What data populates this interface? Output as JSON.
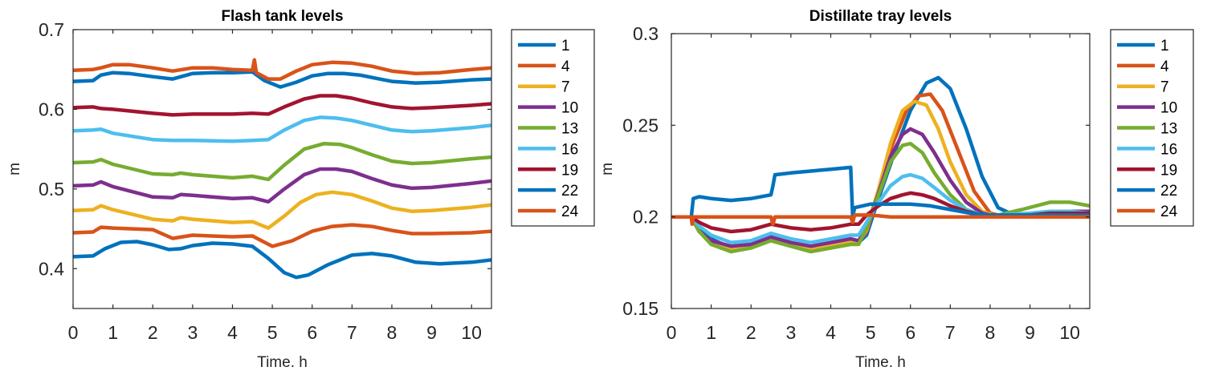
{
  "chart_data": [
    {
      "type": "line",
      "title": "Flash tank levels",
      "xlabel": "Time. h",
      "ylabel": "m",
      "xlim": [
        0,
        10.5
      ],
      "ylim": [
        0.35,
        0.7
      ],
      "xticks": [
        "0",
        "1",
        "2",
        "3",
        "4",
        "5",
        "6",
        "7",
        "8",
        "9",
        "10"
      ],
      "yticks": [
        "0.4",
        "0.5",
        "0.6",
        "0.7"
      ],
      "legend_position": "outside-right",
      "series": [
        {
          "name": "1",
          "color": "#0072BD",
          "x": [
            0,
            0.5,
            0.8,
            1.2,
            1.6,
            2.0,
            2.4,
            2.7,
            3.0,
            3.5,
            4.0,
            4.5,
            4.9,
            5.3,
            5.6,
            5.9,
            6.4,
            7.0,
            7.5,
            8.0,
            8.6,
            9.2,
            10.0,
            10.5
          ],
          "y": [
            0.415,
            0.416,
            0.425,
            0.433,
            0.434,
            0.43,
            0.424,
            0.425,
            0.429,
            0.432,
            0.431,
            0.428,
            0.413,
            0.395,
            0.389,
            0.392,
            0.405,
            0.417,
            0.419,
            0.416,
            0.408,
            0.406,
            0.408,
            0.411
          ]
        },
        {
          "name": "4",
          "color": "#D95319",
          "x": [
            0,
            0.5,
            0.7,
            1.0,
            2.0,
            2.5,
            3.0,
            4.0,
            4.5,
            5.0,
            5.5,
            6.0,
            6.5,
            7.0,
            7.5,
            8.0,
            8.5,
            9.0,
            10.0,
            10.5
          ],
          "y": [
            0.445,
            0.446,
            0.452,
            0.451,
            0.449,
            0.438,
            0.442,
            0.44,
            0.441,
            0.428,
            0.435,
            0.447,
            0.453,
            0.455,
            0.453,
            0.448,
            0.444,
            0.444,
            0.445,
            0.447
          ]
        },
        {
          "name": "7",
          "color": "#EDB120",
          "x": [
            0,
            0.5,
            0.7,
            1.0,
            2.0,
            2.5,
            2.7,
            3.0,
            4.0,
            4.5,
            4.9,
            5.3,
            5.7,
            6.1,
            6.5,
            7.0,
            7.5,
            8.0,
            8.5,
            9.0,
            10.0,
            10.5
          ],
          "y": [
            0.473,
            0.474,
            0.479,
            0.474,
            0.462,
            0.46,
            0.464,
            0.462,
            0.458,
            0.459,
            0.451,
            0.466,
            0.483,
            0.493,
            0.496,
            0.493,
            0.485,
            0.476,
            0.472,
            0.473,
            0.477,
            0.48
          ]
        },
        {
          "name": "10",
          "color": "#7E2F8E",
          "x": [
            0,
            0.5,
            0.7,
            1.0,
            2.0,
            2.5,
            2.7,
            3.0,
            4.0,
            4.5,
            4.9,
            5.3,
            5.8,
            6.2,
            6.6,
            7.0,
            7.5,
            8.0,
            8.5,
            9.0,
            10.0,
            10.5
          ],
          "y": [
            0.504,
            0.505,
            0.509,
            0.503,
            0.49,
            0.489,
            0.493,
            0.492,
            0.488,
            0.489,
            0.484,
            0.5,
            0.518,
            0.525,
            0.525,
            0.522,
            0.513,
            0.505,
            0.501,
            0.502,
            0.507,
            0.51
          ]
        },
        {
          "name": "13",
          "color": "#77AC30",
          "x": [
            0,
            0.5,
            0.7,
            1.0,
            2.0,
            2.5,
            2.7,
            3.0,
            4.0,
            4.5,
            4.9,
            5.3,
            5.8,
            6.3,
            6.7,
            7.0,
            7.5,
            8.0,
            8.5,
            9.0,
            10.0,
            10.5
          ],
          "y": [
            0.533,
            0.534,
            0.537,
            0.531,
            0.519,
            0.518,
            0.52,
            0.518,
            0.514,
            0.516,
            0.512,
            0.53,
            0.55,
            0.557,
            0.556,
            0.552,
            0.543,
            0.535,
            0.532,
            0.533,
            0.538,
            0.54
          ]
        },
        {
          "name": "16",
          "color": "#4DBEEE",
          "x": [
            0,
            0.5,
            0.7,
            1.0,
            2.0,
            2.5,
            3.0,
            4.0,
            4.5,
            4.9,
            5.3,
            5.8,
            6.2,
            6.6,
            7.0,
            7.5,
            8.0,
            8.5,
            9.0,
            10.0,
            10.5
          ],
          "y": [
            0.573,
            0.574,
            0.575,
            0.57,
            0.562,
            0.561,
            0.561,
            0.56,
            0.561,
            0.562,
            0.574,
            0.586,
            0.59,
            0.589,
            0.586,
            0.58,
            0.574,
            0.572,
            0.573,
            0.577,
            0.58
          ]
        },
        {
          "name": "19",
          "color": "#A2142F",
          "x": [
            0,
            0.5,
            0.7,
            1.0,
            2.0,
            2.5,
            3.0,
            4.0,
            4.5,
            4.9,
            5.3,
            5.8,
            6.2,
            6.6,
            7.0,
            7.5,
            8.0,
            8.5,
            9.0,
            10.0,
            10.5
          ],
          "y": [
            0.602,
            0.603,
            0.601,
            0.6,
            0.595,
            0.593,
            0.594,
            0.594,
            0.595,
            0.594,
            0.603,
            0.613,
            0.617,
            0.617,
            0.614,
            0.608,
            0.603,
            0.601,
            0.602,
            0.605,
            0.607
          ]
        },
        {
          "name": "22",
          "color": "#0072BD",
          "x": [
            0,
            0.5,
            0.7,
            1.0,
            1.4,
            2.0,
            2.5,
            3.0,
            3.5,
            4.0,
            4.5,
            4.8,
            5.2,
            5.6,
            6.0,
            6.4,
            6.8,
            7.2,
            7.6,
            8.0,
            8.6,
            9.2,
            10.0,
            10.5
          ],
          "y": [
            0.635,
            0.636,
            0.643,
            0.646,
            0.645,
            0.641,
            0.638,
            0.645,
            0.646,
            0.646,
            0.647,
            0.636,
            0.628,
            0.634,
            0.642,
            0.645,
            0.645,
            0.643,
            0.639,
            0.635,
            0.633,
            0.634,
            0.637,
            0.638
          ]
        },
        {
          "name": "24",
          "color": "#D95319",
          "x": [
            0,
            0.5,
            0.7,
            1.0,
            1.4,
            2.0,
            2.5,
            3.0,
            3.5,
            4.0,
            4.5,
            4.55,
            4.6,
            4.9,
            5.2,
            5.6,
            6.0,
            6.5,
            7.0,
            7.5,
            8.0,
            8.6,
            9.2,
            10.0,
            10.5
          ],
          "y": [
            0.649,
            0.65,
            0.652,
            0.656,
            0.656,
            0.652,
            0.648,
            0.652,
            0.652,
            0.65,
            0.649,
            0.662,
            0.646,
            0.638,
            0.638,
            0.648,
            0.656,
            0.659,
            0.658,
            0.654,
            0.648,
            0.645,
            0.646,
            0.65,
            0.652
          ]
        }
      ]
    },
    {
      "type": "line",
      "title": "Distillate tray levels",
      "xlabel": "Time. h",
      "ylabel": "m",
      "xlim": [
        0,
        10.5
      ],
      "ylim": [
        0.15,
        0.3
      ],
      "xticks": [
        "0",
        "1",
        "2",
        "3",
        "4",
        "5",
        "6",
        "7",
        "8",
        "9",
        "10"
      ],
      "yticks": [
        "0.15",
        "0.2",
        "0.25",
        "0.3"
      ],
      "legend_position": "outside-right",
      "series": [
        {
          "name": "1",
          "color": "#0072BD",
          "x": [
            0,
            0.5,
            0.7,
            1.0,
            1.5,
            2.0,
            2.5,
            3.0,
            3.5,
            4.0,
            4.5,
            4.7,
            4.9,
            5.2,
            5.6,
            6.0,
            6.4,
            6.7,
            7.0,
            7.4,
            7.8,
            8.2,
            8.6,
            9.0,
            9.5,
            10.0,
            10.5
          ],
          "y": [
            0.2,
            0.2,
            0.193,
            0.188,
            0.183,
            0.184,
            0.189,
            0.185,
            0.183,
            0.185,
            0.187,
            0.186,
            0.19,
            0.21,
            0.235,
            0.258,
            0.273,
            0.276,
            0.27,
            0.248,
            0.222,
            0.205,
            0.201,
            0.201,
            0.202,
            0.203,
            0.203
          ]
        },
        {
          "name": "4",
          "color": "#D95319",
          "x": [
            0,
            0.5,
            0.7,
            1.0,
            1.5,
            2.0,
            2.5,
            3.0,
            3.5,
            4.0,
            4.5,
            4.7,
            4.9,
            5.2,
            5.5,
            5.9,
            6.2,
            6.5,
            6.8,
            7.2,
            7.6,
            8.0,
            8.4,
            9.0,
            9.5,
            10.0,
            10.5
          ],
          "y": [
            0.2,
            0.2,
            0.192,
            0.187,
            0.183,
            0.184,
            0.189,
            0.185,
            0.183,
            0.185,
            0.187,
            0.186,
            0.192,
            0.213,
            0.237,
            0.258,
            0.266,
            0.267,
            0.258,
            0.236,
            0.214,
            0.202,
            0.2,
            0.201,
            0.202,
            0.203,
            0.203
          ]
        },
        {
          "name": "7",
          "color": "#EDB120",
          "x": [
            0,
            0.5,
            0.7,
            1.0,
            1.5,
            2.0,
            2.5,
            3.0,
            3.5,
            4.0,
            4.5,
            4.7,
            4.9,
            5.2,
            5.5,
            5.8,
            6.1,
            6.4,
            6.7,
            7.0,
            7.4,
            7.8,
            8.2,
            9.0,
            9.5,
            10.0,
            10.5
          ],
          "y": [
            0.2,
            0.2,
            0.192,
            0.187,
            0.183,
            0.184,
            0.189,
            0.185,
            0.183,
            0.185,
            0.187,
            0.186,
            0.193,
            0.215,
            0.24,
            0.258,
            0.263,
            0.261,
            0.248,
            0.23,
            0.212,
            0.203,
            0.2,
            0.201,
            0.202,
            0.203,
            0.203
          ]
        },
        {
          "name": "10",
          "color": "#7E2F8E",
          "x": [
            0,
            0.5,
            0.7,
            1.0,
            1.5,
            2.0,
            2.5,
            3.0,
            3.5,
            4.0,
            4.5,
            4.7,
            4.9,
            5.2,
            5.5,
            5.8,
            6.0,
            6.3,
            6.6,
            7.0,
            7.4,
            7.8,
            8.2,
            9.0,
            9.5,
            10.0,
            10.5
          ],
          "y": [
            0.2,
            0.2,
            0.192,
            0.187,
            0.184,
            0.185,
            0.189,
            0.186,
            0.184,
            0.186,
            0.188,
            0.187,
            0.194,
            0.213,
            0.233,
            0.245,
            0.248,
            0.245,
            0.235,
            0.22,
            0.208,
            0.202,
            0.2,
            0.201,
            0.202,
            0.203,
            0.203
          ]
        },
        {
          "name": "13",
          "color": "#77AC30",
          "x": [
            0,
            0.5,
            0.7,
            1.0,
            1.5,
            2.0,
            2.5,
            3.0,
            3.5,
            4.0,
            4.5,
            4.7,
            4.9,
            5.2,
            5.5,
            5.8,
            6.0,
            6.3,
            6.6,
            7.0,
            7.4,
            7.8,
            8.2,
            8.8,
            9.5,
            10.0,
            10.5
          ],
          "y": [
            0.2,
            0.2,
            0.192,
            0.185,
            0.181,
            0.183,
            0.187,
            0.184,
            0.181,
            0.183,
            0.185,
            0.185,
            0.194,
            0.212,
            0.23,
            0.239,
            0.24,
            0.235,
            0.224,
            0.212,
            0.204,
            0.201,
            0.201,
            0.204,
            0.208,
            0.208,
            0.206
          ]
        },
        {
          "name": "16",
          "color": "#4DBEEE",
          "x": [
            0,
            0.5,
            0.7,
            1.0,
            1.5,
            2.0,
            2.5,
            3.0,
            3.5,
            4.0,
            4.5,
            4.7,
            4.9,
            5.2,
            5.5,
            5.8,
            6.0,
            6.3,
            6.6,
            7.0,
            7.4,
            7.8,
            8.2,
            9.0,
            9.5,
            10.0,
            10.5
          ],
          "y": [
            0.2,
            0.2,
            0.195,
            0.19,
            0.186,
            0.187,
            0.191,
            0.188,
            0.186,
            0.188,
            0.19,
            0.19,
            0.197,
            0.208,
            0.217,
            0.222,
            0.223,
            0.221,
            0.216,
            0.209,
            0.204,
            0.201,
            0.201,
            0.202,
            0.203,
            0.203,
            0.202
          ]
        },
        {
          "name": "19",
          "color": "#A2142F",
          "x": [
            0,
            0.5,
            0.7,
            1.0,
            1.5,
            2.0,
            2.5,
            3.0,
            3.5,
            4.0,
            4.5,
            4.7,
            4.9,
            5.2,
            5.5,
            5.8,
            6.0,
            6.3,
            6.6,
            7.0,
            7.4,
            7.8,
            8.2,
            9.0,
            9.5,
            10.0,
            10.5
          ],
          "y": [
            0.2,
            0.2,
            0.197,
            0.194,
            0.192,
            0.193,
            0.196,
            0.194,
            0.193,
            0.194,
            0.196,
            0.196,
            0.201,
            0.206,
            0.21,
            0.212,
            0.213,
            0.212,
            0.21,
            0.206,
            0.203,
            0.201,
            0.2,
            0.201,
            0.202,
            0.202,
            0.202
          ]
        },
        {
          "name": "22",
          "color": "#0072BD",
          "x": [
            0,
            0.5,
            0.55,
            0.7,
            1.0,
            1.5,
            2.0,
            2.5,
            2.55,
            2.6,
            3.0,
            3.5,
            4.0,
            4.5,
            4.55,
            4.6,
            4.8,
            5.0,
            5.5,
            6.0,
            6.5,
            7.0,
            7.5,
            8.0,
            9.0,
            10.0,
            10.5
          ],
          "y": [
            0.2,
            0.2,
            0.21,
            0.211,
            0.21,
            0.209,
            0.21,
            0.212,
            0.217,
            0.223,
            0.224,
            0.225,
            0.226,
            0.227,
            0.2,
            0.205,
            0.206,
            0.207,
            0.207,
            0.207,
            0.206,
            0.204,
            0.202,
            0.201,
            0.201,
            0.201,
            0.201
          ]
        },
        {
          "name": "24",
          "color": "#D95319",
          "x": [
            0,
            0.5,
            0.52,
            0.55,
            0.7,
            1.0,
            1.5,
            2.0,
            2.5,
            2.55,
            2.6,
            3.0,
            3.5,
            4.0,
            4.5,
            4.55,
            4.6,
            4.8,
            5.0,
            5.5,
            6.0,
            6.5,
            7.0,
            7.5,
            8.0,
            9.0,
            10.0,
            10.5
          ],
          "y": [
            0.2,
            0.2,
            0.196,
            0.2,
            0.2,
            0.2,
            0.2,
            0.2,
            0.2,
            0.196,
            0.2,
            0.2,
            0.2,
            0.2,
            0.2,
            0.197,
            0.201,
            0.201,
            0.201,
            0.2,
            0.2,
            0.2,
            0.2,
            0.2,
            0.2,
            0.2,
            0.2,
            0.2
          ]
        }
      ]
    }
  ]
}
